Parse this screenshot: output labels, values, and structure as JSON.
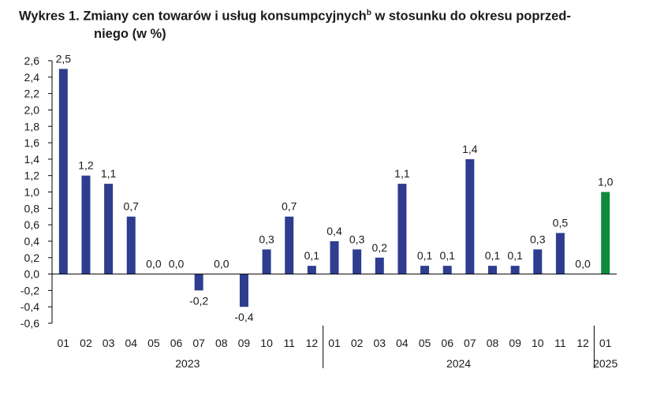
{
  "title": {
    "prefix": "Wykres 1. Zmiany cen towarów i usług konsumpcyjnych",
    "superscript": "b",
    "line1_rest": " w stosunku do okresu poprzed-",
    "line2": "niego (w %)"
  },
  "colors": {
    "bar": "#2e3d8f",
    "highlight": "#0f8a3c",
    "axis": "#000000"
  },
  "chart_data": {
    "type": "bar",
    "title": "Wykres 1. Zmiany cen towarów i usług konsumpcyjnych w stosunku do okresu poprzedniego (w %)",
    "categories": [
      "01",
      "02",
      "03",
      "04",
      "05",
      "06",
      "07",
      "08",
      "09",
      "10",
      "11",
      "12",
      "01",
      "02",
      "03",
      "04",
      "05",
      "06",
      "07",
      "08",
      "09",
      "10",
      "11",
      "12",
      "01"
    ],
    "values": [
      2.5,
      1.2,
      1.1,
      0.7,
      0.0,
      0.0,
      -0.2,
      0.0,
      -0.4,
      0.3,
      0.7,
      0.1,
      0.4,
      0.3,
      0.2,
      1.1,
      0.1,
      0.1,
      1.4,
      0.1,
      0.1,
      0.3,
      0.5,
      0.0,
      1.0
    ],
    "labels": [
      "2,5",
      "1,2",
      "1,1",
      "0,7",
      "0,0",
      "0,0",
      "-0,2",
      "0,0",
      "-0,4",
      "0,3",
      "0,7",
      "0,1",
      "0,4",
      "0,3",
      "0,2",
      "1,1",
      "0,1",
      "0,1",
      "1,4",
      "0,1",
      "0,1",
      "0,3",
      "0,5",
      "0,0",
      "1,0"
    ],
    "highlight_index": 24,
    "yticks": [
      "2,6",
      "2,4",
      "2,2",
      "2,0",
      "1,8",
      "1,6",
      "1,4",
      "1,2",
      "1,0",
      "0,8",
      "0,6",
      "0,4",
      "0,2",
      "0,0",
      "-0,2",
      "-0,4",
      "-0,6"
    ],
    "ytick_values": [
      2.6,
      2.4,
      2.2,
      2.0,
      1.8,
      1.6,
      1.4,
      1.2,
      1.0,
      0.8,
      0.6,
      0.4,
      0.2,
      0.0,
      -0.2,
      -0.4,
      -0.6
    ],
    "ylim": [
      -0.6,
      2.6
    ],
    "groups": [
      {
        "label": "2023",
        "start": 0,
        "end": 11
      },
      {
        "label": "2024",
        "start": 12,
        "end": 23
      },
      {
        "label": "2025",
        "start": 24,
        "end": 24
      }
    ],
    "grid": false
  }
}
